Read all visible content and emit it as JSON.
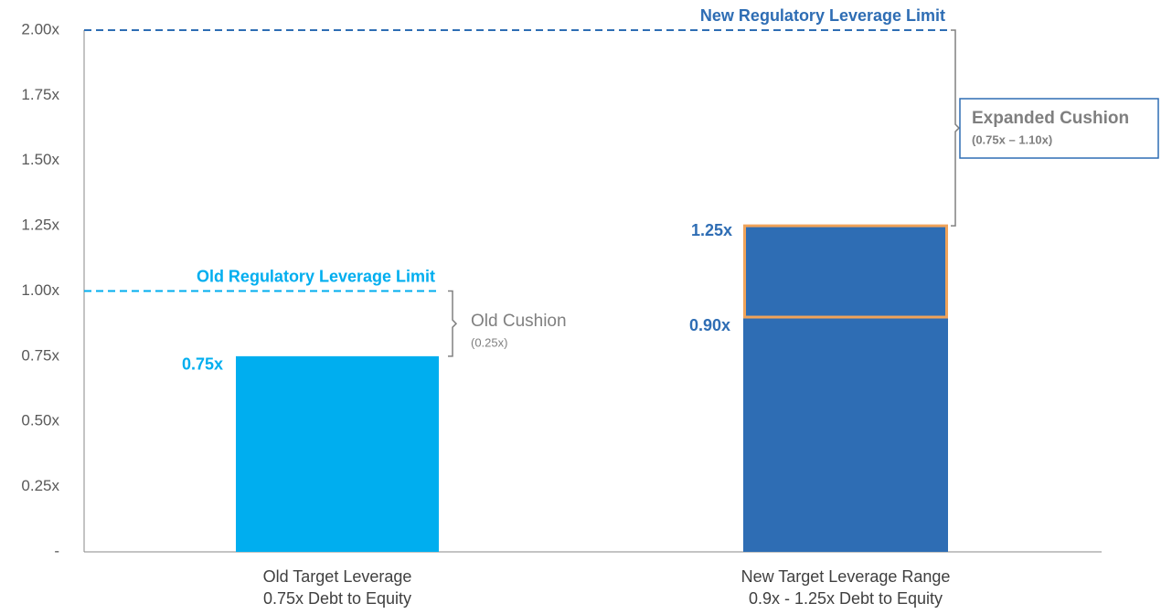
{
  "chart_data": {
    "type": "bar",
    "categories": [
      "Old Target Leverage",
      "New Target Leverage Range"
    ],
    "category_sublabels": [
      "0.75x Debt to Equity",
      "0.9x - 1.25x Debt to Equity"
    ],
    "values": [
      0.75,
      0.9
    ],
    "value_labels": [
      "0.75x",
      "0.90x"
    ],
    "colors": [
      "#00aeef",
      "#2e6db4"
    ],
    "range_top": {
      "category": 1,
      "value": 1.25,
      "label": "1.25x",
      "outline_color": "#f0a35a"
    },
    "ylim": [
      0,
      2.0
    ],
    "yticks": [
      {
        "value": 0,
        "label": "-"
      },
      {
        "value": 0.25,
        "label": "0.25x"
      },
      {
        "value": 0.5,
        "label": "0.50x"
      },
      {
        "value": 0.75,
        "label": "0.75x"
      },
      {
        "value": 1.0,
        "label": "1.00x"
      },
      {
        "value": 1.25,
        "label": "1.25x"
      },
      {
        "value": 1.5,
        "label": "1.50x"
      },
      {
        "value": 1.75,
        "label": "1.75x"
      },
      {
        "value": 2.0,
        "label": "2.00x"
      }
    ],
    "reference_lines": [
      {
        "value": 1.0,
        "label": "Old Regulatory Leverage Limit",
        "color": "#00aeef"
      },
      {
        "value": 2.0,
        "label": "New Regulatory Leverage Limit",
        "color": "#2e6db4"
      }
    ],
    "annotations": [
      {
        "title": "Old Cushion",
        "subtitle": "(0.25x)",
        "from": 0.75,
        "to": 1.0
      },
      {
        "title": "Expanded Cushion",
        "subtitle": "(0.75x – 1.10x)",
        "from": 1.25,
        "to": 2.0
      }
    ]
  }
}
